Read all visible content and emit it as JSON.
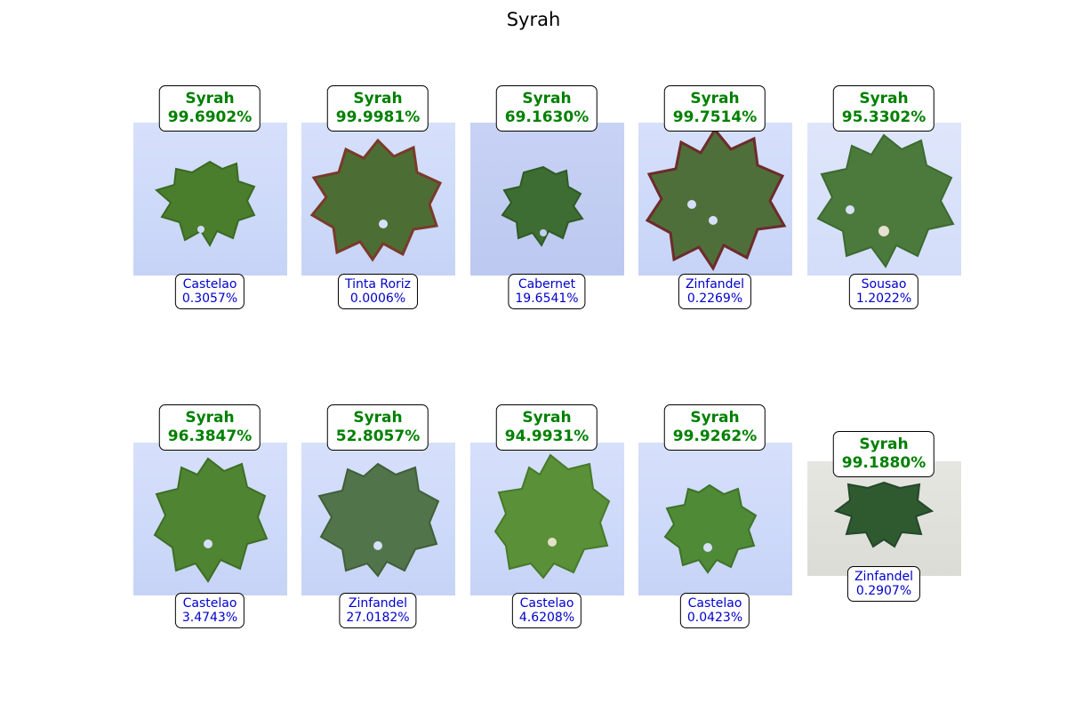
{
  "title": "Syrah",
  "colors": {
    "predicted": "#008000",
    "secondary": "#0000cc",
    "leaf": "#3f7a2e"
  },
  "panels": [
    {
      "pred_label": "Syrah",
      "pred_conf": "99.6902%",
      "alt_label": "Castelao",
      "alt_conf": "0.3057%"
    },
    {
      "pred_label": "Syrah",
      "pred_conf": "99.9981%",
      "alt_label": "Tinta Roriz",
      "alt_conf": "0.0006%"
    },
    {
      "pred_label": "Syrah",
      "pred_conf": "69.1630%",
      "alt_label": "Cabernet",
      "alt_conf": "19.6541%"
    },
    {
      "pred_label": "Syrah",
      "pred_conf": "99.7514%",
      "alt_label": "Zinfandel",
      "alt_conf": "0.2269%"
    },
    {
      "pred_label": "Syrah",
      "pred_conf": "95.3302%",
      "alt_label": "Sousao",
      "alt_conf": "1.2022%"
    },
    {
      "pred_label": "Syrah",
      "pred_conf": "96.3847%",
      "alt_label": "Castelao",
      "alt_conf": "3.4743%"
    },
    {
      "pred_label": "Syrah",
      "pred_conf": "52.8057%",
      "alt_label": "Zinfandel",
      "alt_conf": "27.0182%"
    },
    {
      "pred_label": "Syrah",
      "pred_conf": "94.9931%",
      "alt_label": "Castelao",
      "alt_conf": "4.6208%"
    },
    {
      "pred_label": "Syrah",
      "pred_conf": "99.9262%",
      "alt_label": "Castelao",
      "alt_conf": "0.0423%"
    },
    {
      "pred_label": "Syrah",
      "pred_conf": "99.1880%",
      "alt_label": "Zinfandel",
      "alt_conf": "0.2907%"
    }
  ]
}
